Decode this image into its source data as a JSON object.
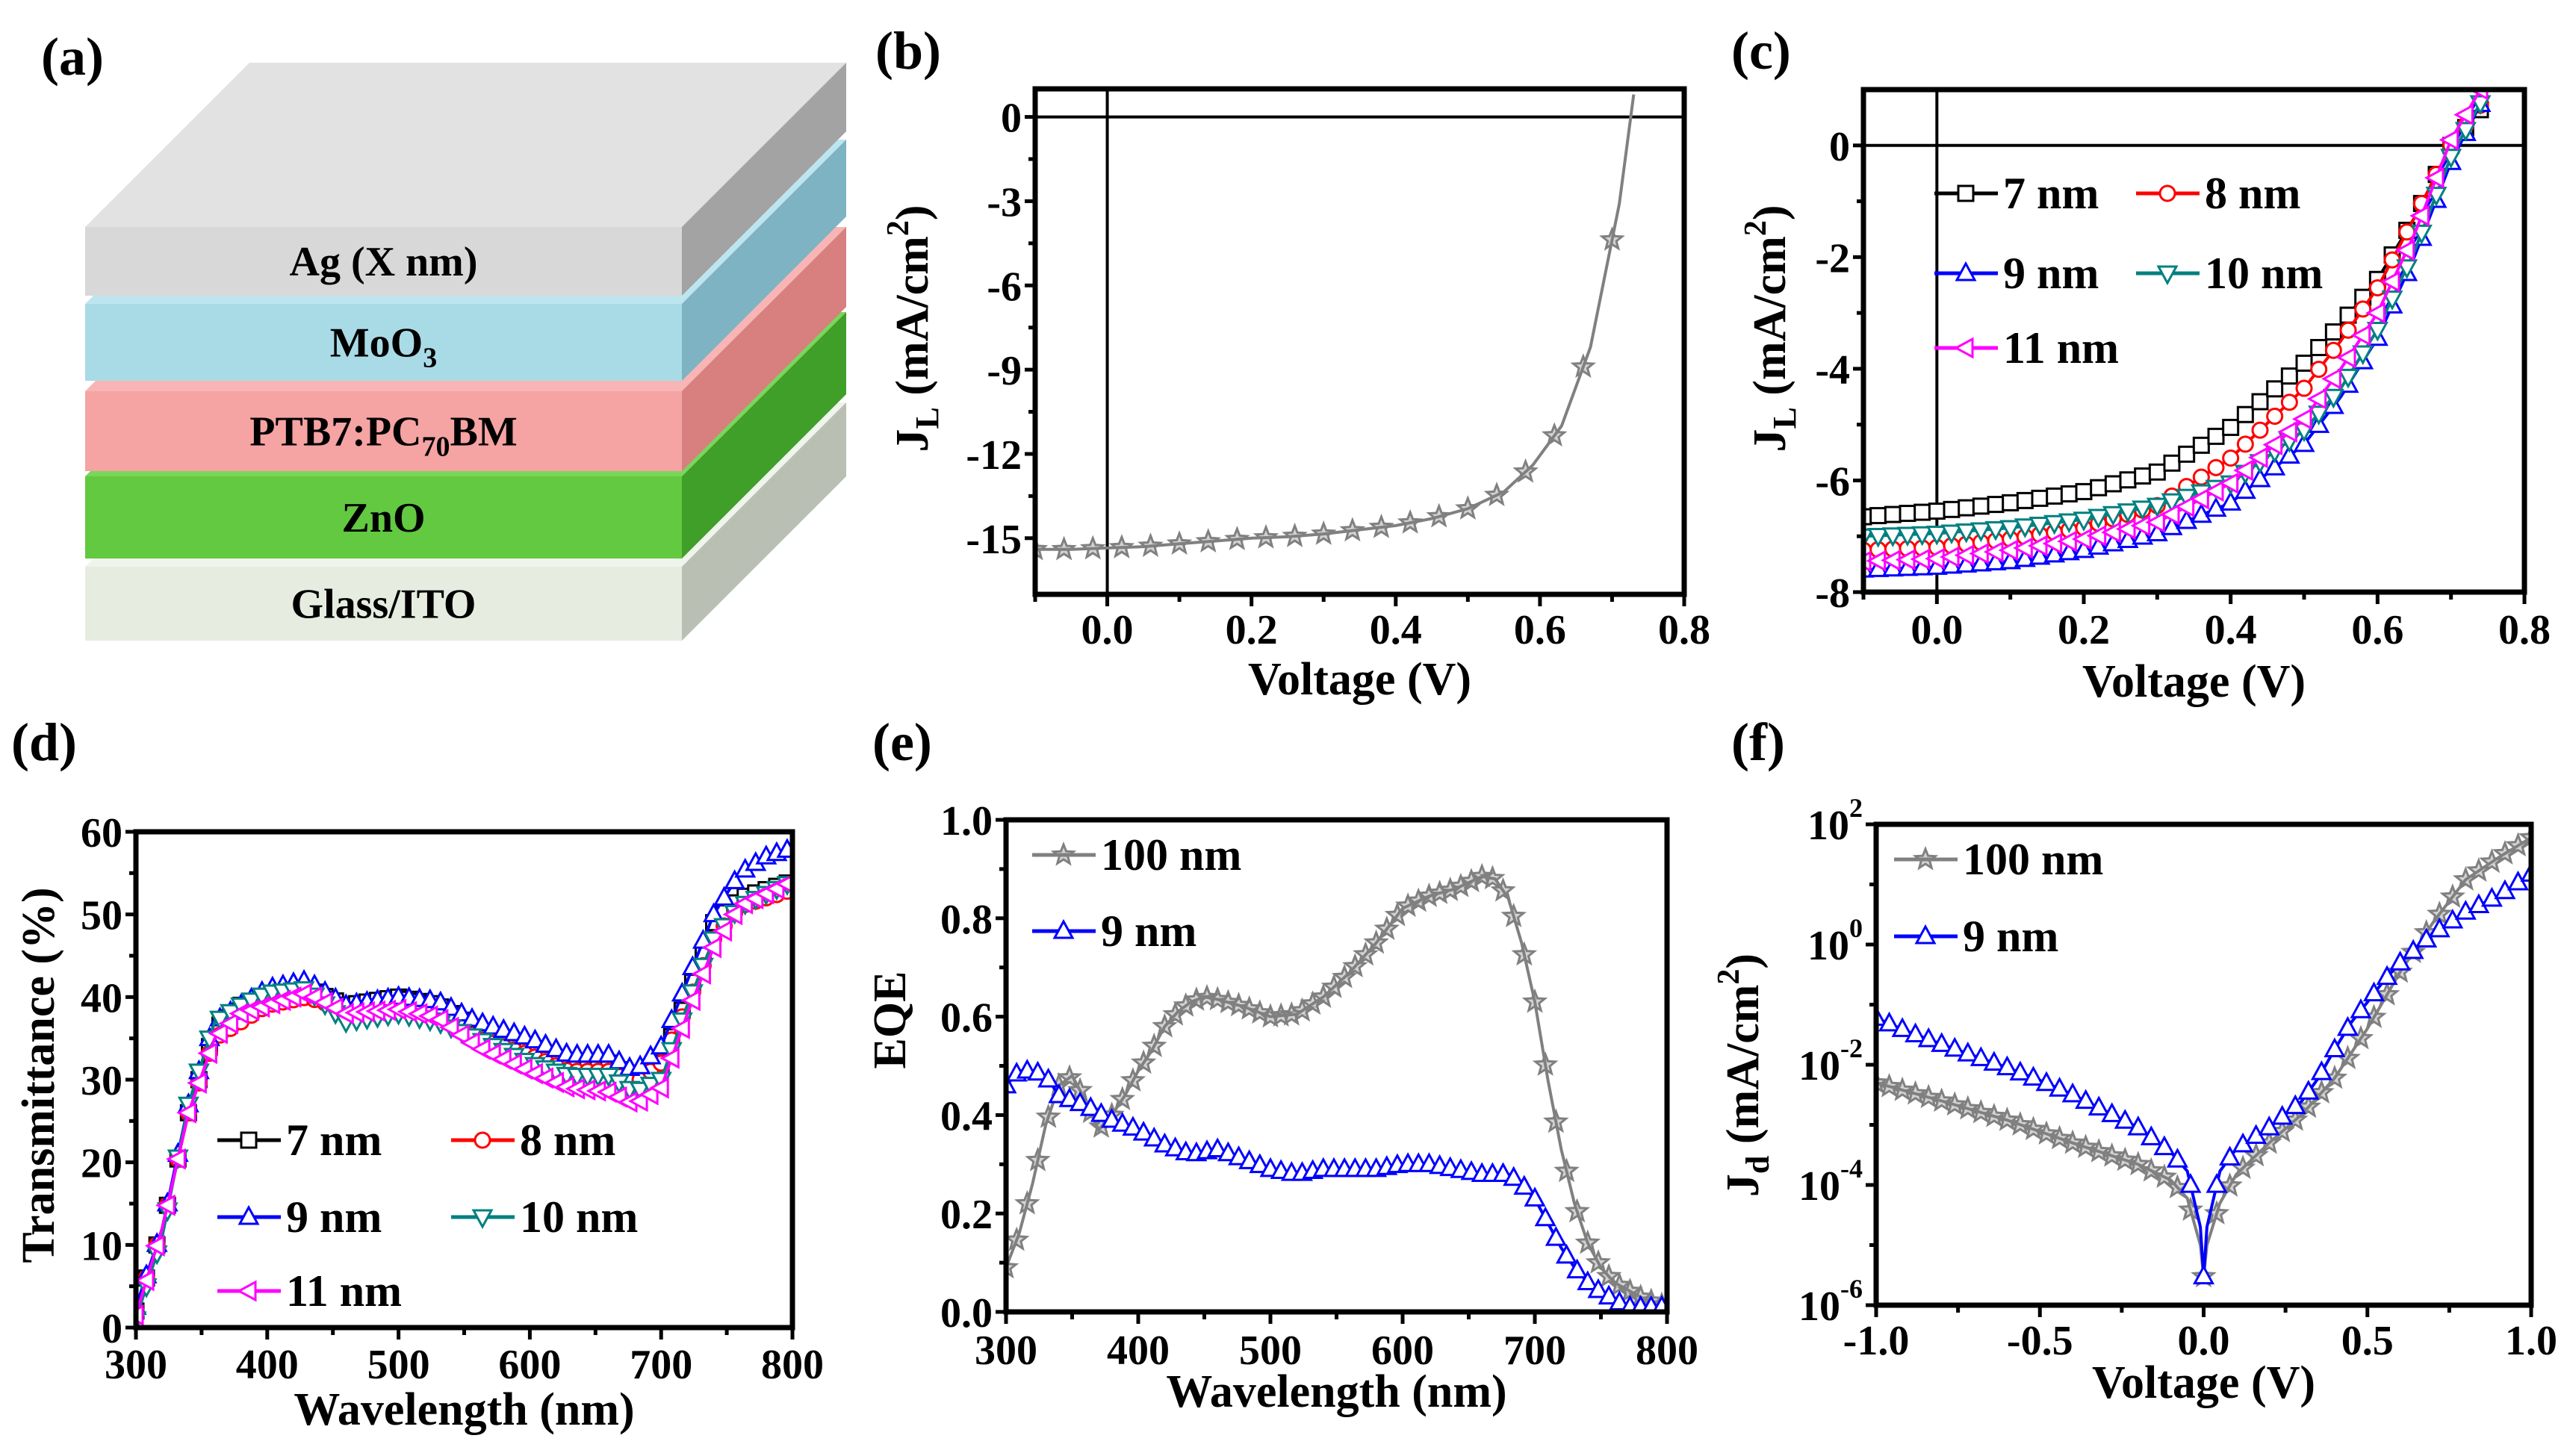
{
  "panel_labels": [
    "(a)",
    "(b)",
    "(c)",
    "(d)",
    "(e)",
    "(f)"
  ],
  "schematic": {
    "layers": [
      {
        "main": "Glass/ITO",
        "sub": "",
        "post": "",
        "front": "#e6ecdf",
        "top": "#f0f4ec",
        "side": "#b9bfb2"
      },
      {
        "main": "ZnO",
        "sub": "",
        "post": "",
        "front": "#62c941",
        "top": "#7ad65a",
        "side": "#3f9f28"
      },
      {
        "main": "PTB7:PC",
        "sub": "70",
        "post": "BM",
        "front": "#f5a3a3",
        "top": "#f7b5b5",
        "side": "#d87f7f"
      },
      {
        "main": "MoO",
        "sub": "3",
        "post": "",
        "front": "#a9dbe7",
        "top": "#bde5ee",
        "side": "#7db3c3"
      },
      {
        "main": "Ag (X nm)",
        "sub": "",
        "post": "",
        "front": "#d8d8d8",
        "top": "#e2e2e2",
        "side": "#a3a3a3"
      }
    ]
  },
  "chart_data": [
    {
      "type": "line",
      "scale_y": "linear",
      "xlabel": "Voltage (V)",
      "ylabel": {
        "main": "J",
        "sub": "L",
        "pre": " (mA/cm",
        "sup": "2",
        "post": ")"
      },
      "xlim": [
        -0.1,
        0.8
      ],
      "ylim": [
        -17,
        1
      ],
      "xticks": [
        0.0,
        0.2,
        0.4,
        0.6,
        0.8
      ],
      "xtick_labels": [
        "0.0",
        "0.2",
        "0.4",
        "0.6",
        "0.8"
      ],
      "yticks": [
        0,
        -3,
        -6,
        -9,
        -12,
        -15
      ],
      "ytick_labels": [
        "0",
        "-3",
        "-6",
        "-9",
        "-12",
        "-15"
      ],
      "zero_lines": true,
      "series": [
        {
          "color": "#808080",
          "marker": "star",
          "x": [
            -0.1,
            -0.05,
            0,
            0.05,
            0.1,
            0.15,
            0.2,
            0.25,
            0.3,
            0.35,
            0.4,
            0.45,
            0.5,
            0.55,
            0.59,
            0.63,
            0.67,
            0.71,
            0.73
          ],
          "y": [
            -15.4,
            -15.4,
            -15.35,
            -15.3,
            -15.2,
            -15.1,
            -15.0,
            -14.95,
            -14.85,
            -14.7,
            -14.55,
            -14.3,
            -13.95,
            -13.35,
            -12.4,
            -11.0,
            -8.2,
            -3.1,
            0.8
          ]
        }
      ]
    },
    {
      "type": "line",
      "scale_y": "linear",
      "xlabel": "Voltage (V)",
      "ylabel": {
        "main": "J",
        "sub": "L",
        "pre": " (mA/cm",
        "sup": "2",
        "post": ")"
      },
      "xlim": [
        -0.1,
        0.8
      ],
      "ylim": [
        -8,
        1
      ],
      "xticks": [
        0.0,
        0.2,
        0.4,
        0.6,
        0.8
      ],
      "xtick_labels": [
        "0.0",
        "0.2",
        "0.4",
        "0.6",
        "0.8"
      ],
      "yticks": [
        0,
        -2,
        -4,
        -6,
        -8
      ],
      "ytick_labels": [
        "0",
        "-2",
        "-4",
        "-6",
        "-8"
      ],
      "zero_lines": true,
      "legend": "top-left",
      "series": [
        {
          "name": "7 nm",
          "color": "#000000",
          "marker": "square",
          "x": [
            -0.1,
            0,
            0.1,
            0.2,
            0.3,
            0.4,
            0.5,
            0.55,
            0.6,
            0.65,
            0.7,
            0.75
          ],
          "y": [
            -6.65,
            -6.55,
            -6.4,
            -6.2,
            -5.85,
            -5.05,
            -3.9,
            -3.2,
            -2.4,
            -1.3,
            0,
            0.8
          ]
        },
        {
          "name": "8 nm",
          "color": "#ff0000",
          "marker": "circle",
          "x": [
            -0.1,
            0,
            0.1,
            0.2,
            0.3,
            0.4,
            0.5,
            0.55,
            0.6,
            0.65,
            0.7,
            0.75
          ],
          "y": [
            -7.25,
            -7.2,
            -7.05,
            -6.85,
            -6.45,
            -5.6,
            -4.35,
            -3.5,
            -2.55,
            -1.3,
            0,
            0.9
          ]
        },
        {
          "name": "9 nm",
          "color": "#0000ff",
          "marker": "triangle-up",
          "x": [
            -0.1,
            0,
            0.1,
            0.2,
            0.3,
            0.4,
            0.5,
            0.55,
            0.6,
            0.65,
            0.7,
            0.75
          ],
          "y": [
            -7.6,
            -7.55,
            -7.45,
            -7.25,
            -6.95,
            -6.4,
            -5.35,
            -4.5,
            -3.45,
            -2.0,
            -0.3,
            1.0
          ]
        },
        {
          "name": "10 nm",
          "color": "#008080",
          "marker": "triangle-down",
          "x": [
            -0.1,
            0,
            0.1,
            0.2,
            0.3,
            0.4,
            0.5,
            0.55,
            0.6,
            0.65,
            0.7,
            0.75
          ],
          "y": [
            -7.0,
            -6.95,
            -6.85,
            -6.7,
            -6.45,
            -6.05,
            -5.1,
            -4.35,
            -3.3,
            -1.9,
            -0.2,
            1.0
          ]
        },
        {
          "name": "11 nm",
          "color": "#ff00ff",
          "marker": "triangle-left",
          "x": [
            -0.1,
            0,
            0.1,
            0.2,
            0.3,
            0.4,
            0.5,
            0.55,
            0.6,
            0.65,
            0.7,
            0.74
          ],
          "y": [
            -7.45,
            -7.4,
            -7.25,
            -7.05,
            -6.75,
            -6.05,
            -4.9,
            -4.0,
            -3.0,
            -1.6,
            0.1,
            1.0
          ]
        }
      ]
    },
    {
      "type": "line",
      "scale_y": "linear",
      "xlabel": "Wavelength (nm)",
      "ylabel": {
        "main": "Transmittance (%)",
        "sub": "",
        "pre": "",
        "sup": "",
        "post": ""
      },
      "xlim": [
        300,
        800
      ],
      "ylim": [
        0,
        60
      ],
      "xticks": [
        300,
        400,
        500,
        600,
        700,
        800
      ],
      "xtick_labels": [
        "300",
        "400",
        "500",
        "600",
        "700",
        "800"
      ],
      "yticks": [
        0,
        10,
        20,
        30,
        40,
        50,
        60
      ],
      "ytick_labels": [
        "0",
        "10",
        "20",
        "30",
        "40",
        "50",
        "60"
      ],
      "zero_lines": false,
      "legend": "lower-center",
      "series": [
        {
          "name": "7 nm",
          "color": "#000000",
          "marker": "square",
          "x": [
            300,
            320,
            340,
            360,
            380,
            400,
            430,
            460,
            500,
            530,
            560,
            600,
            630,
            660,
            680,
            700,
            720,
            740,
            760,
            800
          ],
          "y": [
            2,
            12,
            26,
            36,
            39,
            40,
            41,
            39,
            40,
            39,
            36,
            34,
            32,
            32,
            30,
            32,
            40,
            49,
            52,
            54
          ]
        },
        {
          "name": "8 nm",
          "color": "#ff0000",
          "marker": "circle",
          "x": [
            300,
            320,
            340,
            360,
            380,
            400,
            430,
            460,
            500,
            530,
            560,
            600,
            630,
            660,
            680,
            700,
            720,
            740,
            760,
            800
          ],
          "y": [
            2,
            12,
            26,
            35,
            37,
            39,
            40,
            38.5,
            39.5,
            38.5,
            35,
            33,
            31,
            31,
            29.5,
            32,
            39,
            47,
            51,
            53
          ]
        },
        {
          "name": "9 nm",
          "color": "#0000ff",
          "marker": "triangle-up",
          "x": [
            300,
            320,
            340,
            360,
            380,
            400,
            430,
            460,
            500,
            530,
            560,
            600,
            630,
            660,
            680,
            700,
            720,
            740,
            760,
            780,
            800
          ],
          "y": [
            2.5,
            12,
            27,
            37,
            39,
            41,
            42,
            39,
            40,
            39.5,
            37,
            35,
            33,
            33,
            31,
            34,
            42,
            50,
            55,
            57,
            58
          ]
        },
        {
          "name": "10 nm",
          "color": "#008080",
          "marker": "triangle-down",
          "x": [
            300,
            320,
            340,
            360,
            380,
            400,
            430,
            460,
            500,
            530,
            560,
            600,
            630,
            660,
            680,
            700,
            720,
            740,
            760,
            800
          ],
          "y": [
            1,
            11,
            27,
            37,
            39,
            40.5,
            41,
            37,
            38,
            37,
            35,
            32,
            30.5,
            30.5,
            28.5,
            30,
            39,
            47,
            51,
            54
          ]
        },
        {
          "name": "11 nm",
          "color": "#ff00ff",
          "marker": "triangle-left",
          "x": [
            300,
            320,
            340,
            360,
            380,
            400,
            430,
            460,
            500,
            530,
            560,
            600,
            630,
            660,
            680,
            700,
            720,
            740,
            760,
            800
          ],
          "y": [
            1.5,
            12,
            26,
            35,
            38,
            39,
            40.5,
            38,
            38.5,
            37.5,
            34,
            31,
            29,
            28.5,
            27,
            29,
            38,
            46,
            51,
            54
          ]
        }
      ]
    },
    {
      "type": "line",
      "scale_y": "linear",
      "xlabel": "Wavelength (nm)",
      "ylabel": {
        "main": "EQE",
        "sub": "",
        "pre": "",
        "sup": "",
        "post": ""
      },
      "xlim": [
        300,
        800
      ],
      "ylim": [
        0,
        1
      ],
      "xticks": [
        300,
        400,
        500,
        600,
        700,
        800
      ],
      "xtick_labels": [
        "300",
        "400",
        "500",
        "600",
        "700",
        "800"
      ],
      "yticks": [
        0,
        0.2,
        0.4,
        0.6,
        0.8,
        1.0
      ],
      "ytick_labels": [
        "0.0",
        "0.2",
        "0.4",
        "0.6",
        "0.8",
        "1.0"
      ],
      "zero_lines": false,
      "legend": "top-left",
      "series": [
        {
          "name": "100 nm",
          "color": "#808080",
          "marker": "star",
          "x": [
            300,
            310,
            320,
            330,
            340,
            350,
            360,
            370,
            380,
            390,
            400,
            410,
            420,
            430,
            440,
            450,
            460,
            480,
            500,
            520,
            540,
            560,
            580,
            600,
            620,
            640,
            660,
            670,
            680,
            690,
            700,
            710,
            720,
            730,
            740,
            750,
            760,
            780,
            800
          ],
          "y": [
            0.09,
            0.16,
            0.26,
            0.38,
            0.46,
            0.48,
            0.43,
            0.37,
            0.4,
            0.44,
            0.49,
            0.53,
            0.58,
            0.61,
            0.63,
            0.64,
            0.635,
            0.62,
            0.6,
            0.605,
            0.64,
            0.69,
            0.75,
            0.82,
            0.845,
            0.86,
            0.885,
            0.88,
            0.84,
            0.75,
            0.63,
            0.47,
            0.33,
            0.22,
            0.14,
            0.09,
            0.06,
            0.03,
            0.01
          ]
        },
        {
          "name": "9 nm",
          "color": "#0000ff",
          "marker": "triangle-up",
          "x": [
            300,
            310,
            320,
            330,
            340,
            360,
            380,
            400,
            420,
            440,
            460,
            480,
            500,
            520,
            540,
            560,
            580,
            600,
            620,
            640,
            660,
            680,
            690,
            700,
            710,
            720,
            730,
            740,
            750,
            770,
            800
          ],
          "y": [
            0.46,
            0.49,
            0.49,
            0.48,
            0.44,
            0.42,
            0.39,
            0.37,
            0.34,
            0.32,
            0.33,
            0.31,
            0.29,
            0.28,
            0.29,
            0.29,
            0.29,
            0.3,
            0.3,
            0.29,
            0.28,
            0.28,
            0.26,
            0.23,
            0.18,
            0.13,
            0.09,
            0.06,
            0.04,
            0.01,
            0.01
          ]
        }
      ]
    },
    {
      "type": "line",
      "scale_y": "log",
      "xlabel": "Voltage (V)",
      "ylabel": {
        "main": "J",
        "sub": "d",
        "pre": " (mA/cm",
        "sup": "2",
        "post": ")"
      },
      "xlim": [
        -1.0,
        1.0
      ],
      "ylim": [
        1e-06,
        100
      ],
      "xticks": [
        -1.0,
        -0.5,
        0.0,
        0.5,
        1.0
      ],
      "xtick_labels": [
        "-1.0",
        "-0.5",
        "0.0",
        "0.5",
        "1.0"
      ],
      "yticks": [
        1e-06,
        0.0001,
        0.01,
        1,
        100
      ],
      "ytick_labels": [
        {
          "base": "10",
          "exp": "-6"
        },
        {
          "base": "10",
          "exp": "-4"
        },
        {
          "base": "10",
          "exp": "-2"
        },
        {
          "base": "10",
          "exp": "0"
        },
        {
          "base": "10",
          "exp": "2"
        }
      ],
      "zero_lines": false,
      "legend": "top-left",
      "series": [
        {
          "name": "100 nm",
          "color": "#808080",
          "marker": "star",
          "x": [
            -1,
            -0.8,
            -0.6,
            -0.4,
            -0.2,
            -0.1,
            -0.05,
            -0.01,
            0,
            0.01,
            0.05,
            0.1,
            0.2,
            0.3,
            0.4,
            0.5,
            0.6,
            0.7,
            0.8,
            0.9,
            1.0
          ],
          "y": [
            0.005,
            0.0025,
            0.0012,
            0.0005,
            0.00022,
            0.00012,
            6e-05,
            1e-05,
            3e-06,
            1e-05,
            5e-05,
            0.00015,
            0.0005,
            0.0015,
            0.006,
            0.04,
            0.35,
            2.3,
            12,
            28,
            60
          ]
        },
        {
          "name": "9 nm",
          "color": "#0000ff",
          "marker": "triangle-up",
          "x": [
            -1,
            -0.9,
            -0.8,
            -0.7,
            -0.6,
            -0.5,
            -0.4,
            -0.3,
            -0.2,
            -0.1,
            -0.05,
            -0.01,
            0,
            0.01,
            0.05,
            0.1,
            0.2,
            0.3,
            0.35,
            0.4,
            0.45,
            0.5,
            0.55,
            0.6,
            0.7,
            0.8,
            0.9,
            1.0
          ],
          "y": [
            0.06,
            0.035,
            0.022,
            0.014,
            0.009,
            0.0055,
            0.0032,
            0.0017,
            0.0009,
            0.00035,
            0.00017,
            2e-05,
            3e-06,
            2e-05,
            0.00017,
            0.0004,
            0.0009,
            0.0025,
            0.006,
            0.018,
            0.05,
            0.11,
            0.25,
            0.5,
            1.5,
            3.5,
            6.5,
            15
          ]
        }
      ]
    }
  ]
}
